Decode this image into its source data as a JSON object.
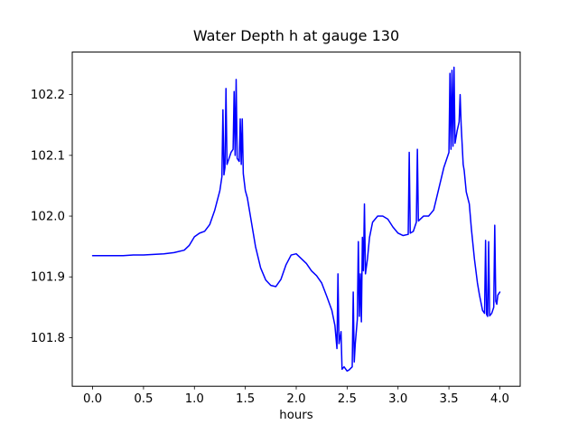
{
  "chart_data": {
    "type": "line",
    "title": "Water Depth h at gauge 130",
    "xlabel": "hours",
    "ylabel": "",
    "grid": false,
    "legend": "none",
    "xlim": [
      -0.2,
      4.2
    ],
    "ylim": [
      101.72,
      102.27
    ],
    "xticks": [
      0.0,
      0.5,
      1.0,
      1.5,
      2.0,
      2.5,
      3.0,
      3.5,
      4.0
    ],
    "yticks": [
      101.8,
      101.9,
      102.0,
      102.1,
      102.2
    ],
    "line_color": "#0000ff",
    "series": [
      {
        "name": "h",
        "points": [
          [
            0.0,
            101.935
          ],
          [
            0.1,
            101.935
          ],
          [
            0.2,
            101.935
          ],
          [
            0.3,
            101.935
          ],
          [
            0.4,
            101.936
          ],
          [
            0.5,
            101.936
          ],
          [
            0.6,
            101.937
          ],
          [
            0.7,
            101.938
          ],
          [
            0.8,
            101.94
          ],
          [
            0.9,
            101.944
          ],
          [
            0.95,
            101.952
          ],
          [
            1.0,
            101.966
          ],
          [
            1.05,
            101.972
          ],
          [
            1.1,
            101.975
          ],
          [
            1.15,
            101.986
          ],
          [
            1.2,
            102.01
          ],
          [
            1.25,
            102.042
          ],
          [
            1.27,
            102.065
          ],
          [
            1.28,
            102.175
          ],
          [
            1.29,
            102.068
          ],
          [
            1.3,
            102.08
          ],
          [
            1.31,
            102.21
          ],
          [
            1.32,
            102.085
          ],
          [
            1.34,
            102.095
          ],
          [
            1.36,
            102.105
          ],
          [
            1.38,
            102.11
          ],
          [
            1.39,
            102.205
          ],
          [
            1.4,
            102.1
          ],
          [
            1.41,
            102.225
          ],
          [
            1.42,
            102.095
          ],
          [
            1.44,
            102.09
          ],
          [
            1.45,
            102.16
          ],
          [
            1.46,
            102.085
          ],
          [
            1.47,
            102.16
          ],
          [
            1.48,
            102.07
          ],
          [
            1.5,
            102.042
          ],
          [
            1.52,
            102.03
          ],
          [
            1.55,
            102.0
          ],
          [
            1.6,
            101.95
          ],
          [
            1.65,
            101.915
          ],
          [
            1.7,
            101.895
          ],
          [
            1.75,
            101.886
          ],
          [
            1.8,
            101.884
          ],
          [
            1.85,
            101.896
          ],
          [
            1.9,
            101.92
          ],
          [
            1.95,
            101.936
          ],
          [
            2.0,
            101.938
          ],
          [
            2.05,
            101.93
          ],
          [
            2.1,
            101.922
          ],
          [
            2.15,
            101.91
          ],
          [
            2.2,
            101.902
          ],
          [
            2.25,
            101.89
          ],
          [
            2.3,
            101.868
          ],
          [
            2.35,
            101.845
          ],
          [
            2.38,
            101.82
          ],
          [
            2.4,
            101.782
          ],
          [
            2.41,
            101.905
          ],
          [
            2.42,
            101.79
          ],
          [
            2.44,
            101.81
          ],
          [
            2.45,
            101.748
          ],
          [
            2.47,
            101.752
          ],
          [
            2.5,
            101.745
          ],
          [
            2.52,
            101.747
          ],
          [
            2.55,
            101.752
          ],
          [
            2.56,
            101.875
          ],
          [
            2.57,
            101.76
          ],
          [
            2.58,
            101.79
          ],
          [
            2.6,
            101.83
          ],
          [
            2.61,
            101.958
          ],
          [
            2.62,
            101.835
          ],
          [
            2.63,
            101.905
          ],
          [
            2.64,
            101.826
          ],
          [
            2.65,
            101.965
          ],
          [
            2.66,
            101.91
          ],
          [
            2.67,
            102.02
          ],
          [
            2.68,
            101.905
          ],
          [
            2.7,
            101.93
          ],
          [
            2.72,
            101.965
          ],
          [
            2.75,
            101.99
          ],
          [
            2.8,
            102.0
          ],
          [
            2.85,
            102.0
          ],
          [
            2.9,
            101.995
          ],
          [
            2.95,
            101.982
          ],
          [
            3.0,
            101.972
          ],
          [
            3.05,
            101.968
          ],
          [
            3.1,
            101.97
          ],
          [
            3.11,
            102.105
          ],
          [
            3.12,
            101.972
          ],
          [
            3.15,
            101.975
          ],
          [
            3.18,
            101.99
          ],
          [
            3.19,
            102.11
          ],
          [
            3.2,
            101.992
          ],
          [
            3.25,
            102.0
          ],
          [
            3.3,
            102.0
          ],
          [
            3.35,
            102.01
          ],
          [
            3.4,
            102.045
          ],
          [
            3.45,
            102.08
          ],
          [
            3.5,
            102.105
          ],
          [
            3.51,
            102.235
          ],
          [
            3.52,
            102.11
          ],
          [
            3.53,
            102.24
          ],
          [
            3.54,
            102.115
          ],
          [
            3.55,
            102.245
          ],
          [
            3.56,
            102.12
          ],
          [
            3.58,
            102.14
          ],
          [
            3.6,
            102.155
          ],
          [
            3.61,
            102.2
          ],
          [
            3.62,
            102.15
          ],
          [
            3.64,
            102.085
          ],
          [
            3.65,
            102.075
          ],
          [
            3.67,
            102.04
          ],
          [
            3.7,
            102.02
          ],
          [
            3.72,
            101.98
          ],
          [
            3.75,
            101.93
          ],
          [
            3.78,
            101.89
          ],
          [
            3.8,
            101.87
          ],
          [
            3.83,
            101.845
          ],
          [
            3.85,
            101.84
          ],
          [
            3.86,
            101.96
          ],
          [
            3.87,
            101.838
          ],
          [
            3.88,
            101.835
          ],
          [
            3.89,
            101.958
          ],
          [
            3.9,
            101.836
          ],
          [
            3.92,
            101.84
          ],
          [
            3.94,
            101.85
          ],
          [
            3.95,
            101.985
          ],
          [
            3.96,
            101.86
          ],
          [
            3.97,
            101.855
          ],
          [
            3.98,
            101.87
          ],
          [
            4.0,
            101.875
          ]
        ]
      }
    ]
  },
  "layout_labels": {
    "tick_format_decimals_x": 1,
    "tick_format_decimals_y": 1
  }
}
